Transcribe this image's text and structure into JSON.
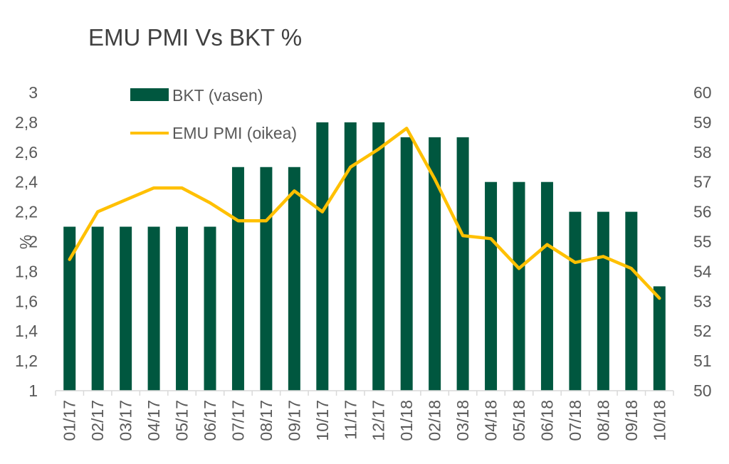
{
  "chart_data": {
    "type": "bar+line",
    "title": "EMU PMI Vs BKT %",
    "ylabel_left": "%",
    "categories": [
      "01/17",
      "02/17",
      "03/17",
      "04/17",
      "05/17",
      "06/17",
      "07/17",
      "08/17",
      "09/17",
      "10/17",
      "11/17",
      "12/17",
      "01/18",
      "02/18",
      "03/18",
      "04/18",
      "05/18",
      "06/18",
      "07/18",
      "08/18",
      "09/18",
      "10/18"
    ],
    "series": [
      {
        "name": "BKT (vasen)",
        "type": "bar",
        "axis": "left",
        "color": "#00573F",
        "values": [
          2.1,
          2.1,
          2.1,
          2.1,
          2.1,
          2.1,
          2.5,
          2.5,
          2.5,
          2.8,
          2.8,
          2.8,
          2.7,
          2.7,
          2.7,
          2.4,
          2.4,
          2.4,
          2.2,
          2.2,
          2.2,
          1.7
        ]
      },
      {
        "name": "EMU PMI (oikea)",
        "type": "line",
        "axis": "right",
        "color": "#FFC000",
        "values": [
          54.4,
          56.0,
          56.4,
          56.8,
          56.8,
          56.3,
          55.7,
          55.7,
          56.7,
          56.0,
          57.5,
          58.1,
          58.8,
          57.1,
          55.2,
          55.1,
          54.1,
          54.9,
          54.3,
          54.5,
          54.1,
          53.1
        ]
      }
    ],
    "ylim_left": [
      1,
      3
    ],
    "ylim_right": [
      50,
      60
    ],
    "yticks_left": [
      "1",
      "1,2",
      "1,4",
      "1,6",
      "1,8",
      "2",
      "2,2",
      "2,4",
      "2,6",
      "2,8",
      "3"
    ],
    "yticks_right": [
      "50",
      "51",
      "52",
      "53",
      "54",
      "55",
      "56",
      "57",
      "58",
      "59",
      "60"
    ],
    "legend": "top-left inside plot",
    "grid": false
  }
}
